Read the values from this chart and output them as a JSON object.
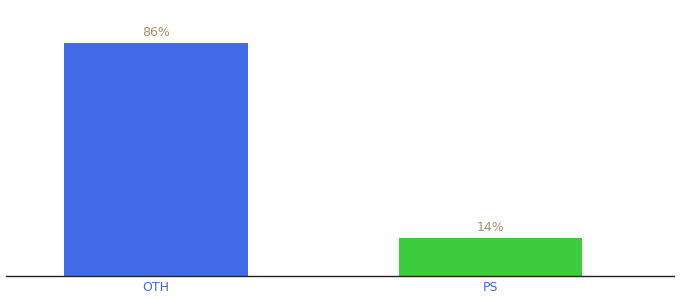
{
  "categories": [
    "OTH",
    "PS"
  ],
  "values": [
    86,
    14
  ],
  "bar_colors": [
    "#4169e8",
    "#3dcc3d"
  ],
  "label_color": "#a89070",
  "label_fontsize": 9,
  "xlabel_fontsize": 9,
  "xlabel_color": "#4169d0",
  "background_color": "#ffffff",
  "ylim": [
    0,
    100
  ],
  "bar_width": 0.55,
  "xlim": [
    -0.45,
    1.55
  ]
}
